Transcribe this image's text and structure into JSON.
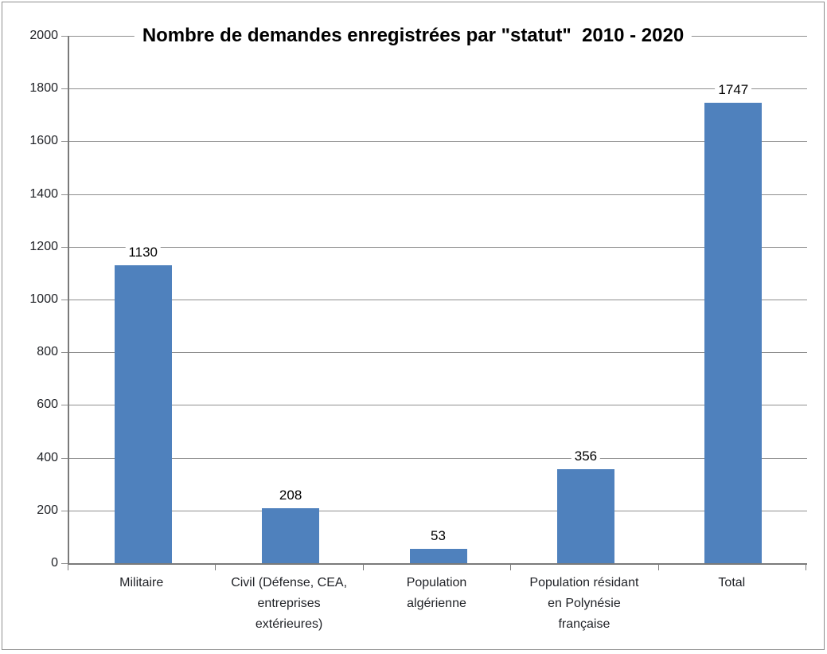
{
  "chart_data": {
    "type": "bar",
    "title": "Nombre de demandes enregistrées par \"statut\"  2010 - 2020",
    "categories": [
      "Militaire",
      "Civil (Défense, CEA, entreprises extérieures)",
      "Population algérienne",
      "Population résidant en Polynésie française",
      "Total"
    ],
    "category_lines": [
      [
        "Militaire"
      ],
      [
        "Civil (Défense, CEA,",
        "entreprises",
        "extérieures)"
      ],
      [
        "Population",
        "algérienne"
      ],
      [
        "Population résidant",
        "en Polynésie",
        "française"
      ],
      [
        "Total"
      ]
    ],
    "values": [
      1130,
      208,
      53,
      356,
      1747
    ],
    "data_labels": [
      "1130",
      "208",
      "53",
      "356",
      "1747"
    ],
    "xlabel": "",
    "ylabel": "",
    "ylim": [
      0,
      2000
    ],
    "yticks": [
      0,
      200,
      400,
      600,
      800,
      1000,
      1200,
      1400,
      1600,
      1800,
      2000
    ],
    "grid": true,
    "legend": "none",
    "colors": {
      "bar": "#4f81bd",
      "gridline": "#8f8f8f",
      "axis": "#7a7a7a",
      "text": "#1f2126",
      "title": "#000000",
      "frame_border": "#8f8f8f",
      "background": "#ffffff"
    }
  }
}
